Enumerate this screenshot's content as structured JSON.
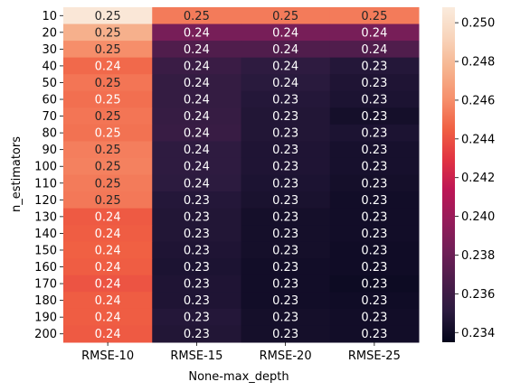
{
  "chart_data": {
    "type": "heatmap",
    "title": "",
    "xlabel": "None-max_depth",
    "ylabel": "n_estimators",
    "x_categories": [
      "RMSE-10",
      "RMSE-15",
      "RMSE-20",
      "RMSE-25"
    ],
    "y_categories": [
      "10",
      "20",
      "30",
      "40",
      "50",
      "60",
      "70",
      "80",
      "90",
      "100",
      "110",
      "120",
      "130",
      "140",
      "150",
      "160",
      "170",
      "180",
      "190",
      "200"
    ],
    "values": [
      [
        0.2505,
        0.2454,
        0.2454,
        0.2454
      ],
      [
        0.2475,
        0.2385,
        0.2385,
        0.2385
      ],
      [
        0.246,
        0.2368,
        0.2368,
        0.2368
      ],
      [
        0.2448,
        0.2358,
        0.2352,
        0.2348
      ],
      [
        0.2452,
        0.2355,
        0.235,
        0.2346
      ],
      [
        0.245,
        0.2355,
        0.2348,
        0.2345
      ],
      [
        0.2452,
        0.2356,
        0.2347,
        0.2342
      ],
      [
        0.2451,
        0.2357,
        0.2347,
        0.2345
      ],
      [
        0.2455,
        0.2352,
        0.2346,
        0.2343
      ],
      [
        0.2456,
        0.2352,
        0.2346,
        0.2343
      ],
      [
        0.2454,
        0.2351,
        0.2345,
        0.2342
      ],
      [
        0.2453,
        0.2348,
        0.2344,
        0.2341
      ],
      [
        0.2443,
        0.2347,
        0.2342,
        0.2341
      ],
      [
        0.2444,
        0.2347,
        0.2342,
        0.2341
      ],
      [
        0.2445,
        0.2346,
        0.2342,
        0.234
      ],
      [
        0.2444,
        0.2345,
        0.2341,
        0.234
      ],
      [
        0.2441,
        0.2346,
        0.2341,
        0.2339
      ],
      [
        0.2444,
        0.2346,
        0.2341,
        0.234
      ],
      [
        0.2444,
        0.2348,
        0.2342,
        0.2341
      ],
      [
        0.2443,
        0.2347,
        0.2342,
        0.2341
      ]
    ],
    "cell_labels": [
      [
        "0.25",
        "0.25",
        "0.25",
        "0.25"
      ],
      [
        "0.25",
        "0.24",
        "0.24",
        "0.24"
      ],
      [
        "0.25",
        "0.24",
        "0.24",
        "0.24"
      ],
      [
        "0.24",
        "0.24",
        "0.24",
        "0.23"
      ],
      [
        "0.25",
        "0.24",
        "0.24",
        "0.23"
      ],
      [
        "0.25",
        "0.24",
        "0.23",
        "0.23"
      ],
      [
        "0.25",
        "0.24",
        "0.23",
        "0.23"
      ],
      [
        "0.25",
        "0.24",
        "0.23",
        "0.23"
      ],
      [
        "0.25",
        "0.24",
        "0.23",
        "0.23"
      ],
      [
        "0.25",
        "0.24",
        "0.23",
        "0.23"
      ],
      [
        "0.25",
        "0.24",
        "0.23",
        "0.23"
      ],
      [
        "0.25",
        "0.23",
        "0.23",
        "0.23"
      ],
      [
        "0.24",
        "0.23",
        "0.23",
        "0.23"
      ],
      [
        "0.24",
        "0.23",
        "0.23",
        "0.23"
      ],
      [
        "0.24",
        "0.23",
        "0.23",
        "0.23"
      ],
      [
        "0.24",
        "0.23",
        "0.23",
        "0.23"
      ],
      [
        "0.24",
        "0.23",
        "0.23",
        "0.23"
      ],
      [
        "0.24",
        "0.23",
        "0.23",
        "0.23"
      ],
      [
        "0.24",
        "0.23",
        "0.23",
        "0.23"
      ],
      [
        "0.24",
        "0.23",
        "0.23",
        "0.23"
      ]
    ],
    "colorbar": {
      "min": 0.2335,
      "max": 0.2508,
      "ticks": [
        0.234,
        0.236,
        0.238,
        0.24,
        0.242,
        0.244,
        0.246,
        0.248,
        0.25
      ],
      "tick_labels": [
        "0.234",
        "0.236",
        "0.238",
        "0.240",
        "0.242",
        "0.244",
        "0.246",
        "0.248",
        "0.250"
      ]
    },
    "colormap": "rocket",
    "colormap_stops": [
      "#03051a",
      "#2b1b3f",
      "#4c1d4b",
      "#701f57",
      "#961c5a",
      "#bd1655",
      "#e13342",
      "#f06043",
      "#f6906c",
      "#f6b48f",
      "#f8d4bb",
      "#faebdd"
    ]
  }
}
